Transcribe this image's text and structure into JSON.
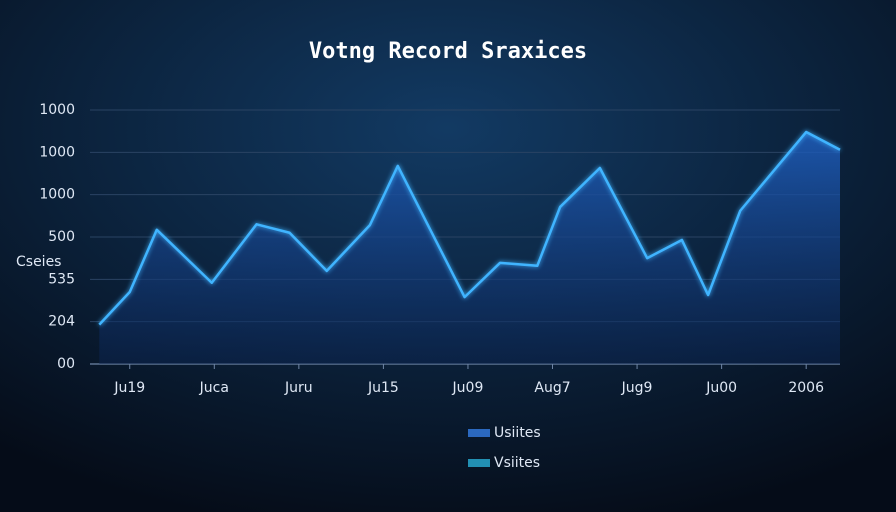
{
  "chart_data": {
    "type": "line",
    "title": "Votng Record Sraxices",
    "ylabel": "Cseies",
    "xlim": [
      -0.47,
      8.4
    ],
    "xticks": [
      {
        "value": 0,
        "label": "Ju19"
      },
      {
        "value": 1,
        "label": "Juca"
      },
      {
        "value": 2,
        "label": "Juru"
      },
      {
        "value": 3,
        "label": "Ju15"
      },
      {
        "value": 4,
        "label": "Ju09"
      },
      {
        "value": 5,
        "label": "Aug7"
      },
      {
        "value": 6,
        "label": "Jug9"
      },
      {
        "value": 7,
        "label": "Ju00"
      },
      {
        "value": 8,
        "label": "2006"
      }
    ],
    "ylim": [
      0,
      6
    ],
    "yticks": [
      {
        "value": 0,
        "label": "00"
      },
      {
        "value": 1,
        "label": "204"
      },
      {
        "value": 2,
        "label": "535"
      },
      {
        "value": 3,
        "label": "500"
      },
      {
        "value": 4,
        "label": "1000"
      },
      {
        "value": 5,
        "label": "1000"
      },
      {
        "value": 6,
        "label": "1000"
      }
    ],
    "grid": true,
    "series": [
      {
        "color": "#3fb4ff",
        "x": [
          -0.36,
          0,
          0.32,
          0.97,
          1.5,
          1.89,
          2.33,
          2.84,
          3.17,
          3.96,
          4.38,
          4.82,
          5.09,
          5.56,
          6.12,
          6.53,
          6.84,
          7.22,
          8.0,
          8.4
        ],
        "values": [
          0.93,
          1.7,
          3.17,
          1.92,
          3.3,
          3.1,
          2.2,
          3.28,
          4.68,
          1.58,
          2.39,
          2.32,
          3.71,
          4.63,
          2.5,
          2.93,
          1.63,
          3.62,
          5.48,
          5.06
        ]
      }
    ],
    "legend": [
      {
        "label": "Usiites",
        "color": "#3a8cff"
      },
      {
        "label": "Vsiites",
        "color": "#2ec4f0"
      }
    ]
  }
}
